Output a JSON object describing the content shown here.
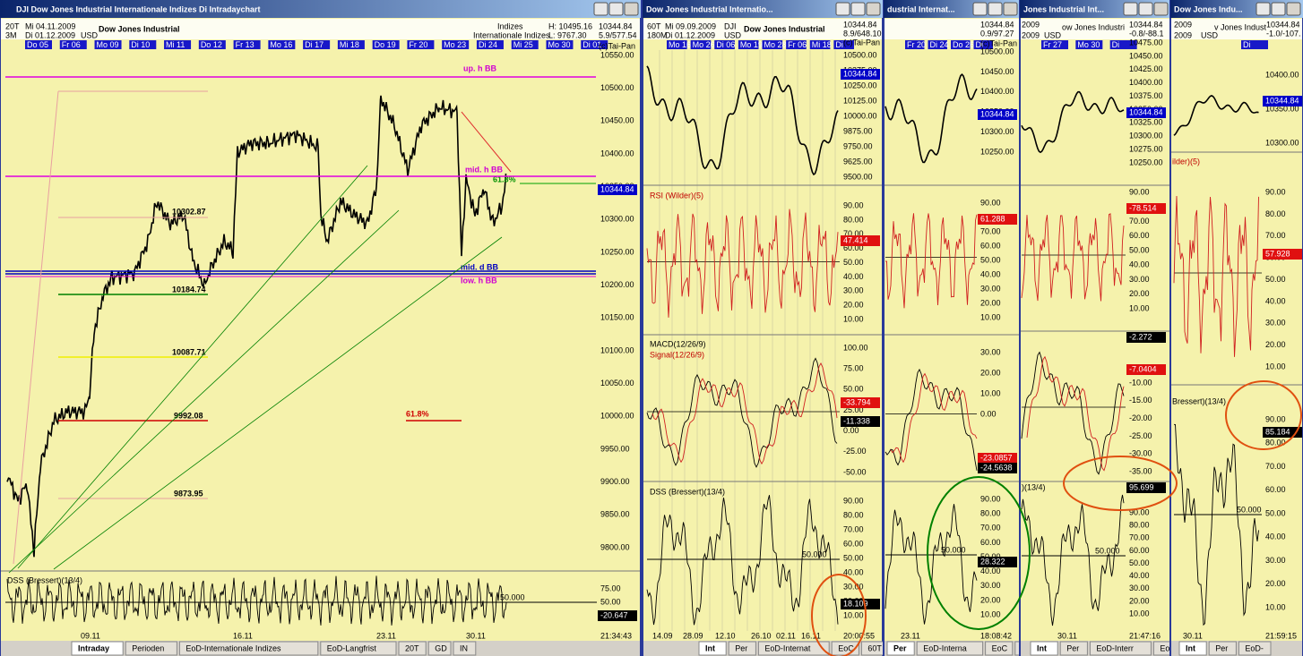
{
  "windows": [
    {
      "title": "DJI Dow Jones Industrial Internationale Indizes Di Intradaychart",
      "header": [
        "20T",
        "Mi 04.11.2009",
        "Dow Jones Industrial",
        "Indizes",
        "H: 10495.16",
        "10344.84",
        "3M",
        "Di 01.12.2009",
        "USD",
        "Internationale Indizes",
        "L: 9767.30",
        "5.9/577.54"
      ],
      "dates": [
        "Do 05",
        "Fr 06",
        "Mo 09",
        "Di 10",
        "Mi 11",
        "Do 12",
        "Fr 13",
        "Mo 16",
        "Di 17",
        "Mi 18",
        "Do 19",
        "Fr 20",
        "Mo 23",
        "Di 24",
        "Mi 25",
        "Mo 30",
        "Di 01"
      ],
      "annotations": [
        {
          "text": "up. h BB",
          "color": "#d000d0"
        },
        {
          "text": "mid. h BB",
          "color": "#d000d0"
        },
        {
          "text": "61.8%",
          "color": "#009000"
        },
        {
          "text": "mid. d BB",
          "color": "#0000c0"
        },
        {
          "text": "low. h BB",
          "color": "#d000d0"
        },
        {
          "text": "10302.87",
          "color": "#000000"
        },
        {
          "text": "10184.74",
          "color": "#000000"
        },
        {
          "text": "10087.71",
          "color": "#000000"
        },
        {
          "text": "9992.08",
          "color": "#000000"
        },
        {
          "text": "61.8%",
          "color": "#d00000"
        },
        {
          "text": "9873.95",
          "color": "#000000"
        }
      ],
      "panels": [
        {
          "labels": [
            {
              "text": "(c)Tai-Pan",
              "color": "#000000"
            }
          ],
          "axis": [
            "10550.00",
            "10500.00",
            "10450.00",
            "10400.00",
            "10350.00",
            "10300.00",
            "10250.00",
            "10200.00",
            "10150.00",
            "10100.00",
            "10050.00",
            "10000.00",
            "9950.00",
            "9900.00",
            "9850.00",
            "9800.00"
          ],
          "tags": [
            {
              "text": "10344.84",
              "color": "#0000c8"
            }
          ]
        },
        {
          "labels": [
            {
              "text": "DSS (Bressert)(13/4)",
              "color": "#000000"
            }
          ],
          "axis": [
            "75.00",
            "50.00",
            "25.00"
          ],
          "level": "50.000",
          "tags": [
            {
              "text": "-20.647",
              "color": "#000000"
            }
          ]
        }
      ],
      "xdates": [
        "09.11",
        "16.11",
        "23.11",
        "30.11"
      ],
      "time": "21:34:43",
      "tabs": [
        "Intraday",
        "Perioden",
        "EoD-Internationale Indizes",
        "EoD-Langfrist",
        "20T",
        "GD",
        "IN"
      ]
    },
    {
      "title": "Dow Jones Industrial Internatio...",
      "header": [
        "60T",
        "Mi 09.09.2009",
        "DJI",
        "180M",
        "Di 01.12.2009",
        "USD",
        "Dow Jones Industrial",
        "10344.84",
        "8.9/648.10"
      ],
      "dates": [
        "Mo 16",
        "Mo 26",
        "Di 06",
        "Mo 19",
        "Mo 28",
        "Fr 06",
        "Mi 18",
        "Di"
      ],
      "panels": [
        {
          "labels": [
            {
              "text": "(c)Tai-Pan",
              "color": "#000000"
            }
          ],
          "axis": [
            "10500.00",
            "10375.00",
            "10250.00",
            "10125.00",
            "10000.00",
            "9875.00",
            "9750.00",
            "9625.00",
            "9500.00"
          ],
          "tags": [
            {
              "text": "10344.84",
              "color": "#0000c8"
            }
          ]
        },
        {
          "labels": [
            {
              "text": "RSI (Wilder)(5)",
              "color": "#c00000"
            }
          ],
          "axis": [
            "90.00",
            "80.00",
            "70.00",
            "60.00",
            "50.00",
            "40.00",
            "30.00",
            "20.00",
            "10.00"
          ],
          "tags": [
            {
              "text": "47.414",
              "color": "#e01010"
            }
          ]
        },
        {
          "labels": [
            {
              "text": "MACD(12/26/9)",
              "color": "#000000"
            },
            {
              "text": "Signal(12/26/9)",
              "color": "#c00000"
            }
          ],
          "axis": [
            "100.00",
            "75.00",
            "50.00",
            "25.00",
            "0.00",
            "-25.00",
            "-50.00"
          ],
          "tags": [
            {
              "text": "-33.794",
              "color": "#e01010"
            },
            {
              "text": "-11.338",
              "color": "#000000"
            }
          ]
        },
        {
          "labels": [
            {
              "text": "DSS (Bressert)(13/4)",
              "color": "#000000"
            }
          ],
          "axis": [
            "90.00",
            "80.00",
            "70.00",
            "60.00",
            "50.00",
            "40.00",
            "30.00",
            "20.00",
            "10.00"
          ],
          "level": "50.000",
          "tags": [
            {
              "text": "18.109",
              "color": "#000000"
            }
          ]
        }
      ],
      "xdates": [
        "14.09",
        "28.09",
        "12.10",
        "26.10",
        "02.11",
        "16.11"
      ],
      "time": "20:00:55",
      "tabs": [
        "Int",
        "Per",
        "EoD-Internat",
        "EoC",
        "60T"
      ]
    },
    {
      "title": "dustrial Internat...",
      "header": [
        "10344.84",
        "0.9/97.27"
      ],
      "dates": [
        "Fr 20",
        "Di 24",
        "Do 26",
        "Di"
      ],
      "panels": [
        {
          "labels": [
            {
              "text": "(c)Tai-Pan",
              "color": "#000000"
            }
          ],
          "axis": [
            "10500.00",
            "10450.00",
            "10400.00",
            "10350.00",
            "10300.00",
            "10250.00"
          ],
          "tags": [
            {
              "text": "10344.84",
              "color": "#0000c8"
            }
          ]
        },
        {
          "labels": [],
          "axis": [
            "90.00",
            "80.00",
            "70.00",
            "60.00",
            "50.00",
            "40.00",
            "30.00",
            "20.00",
            "10.00"
          ],
          "tags": [
            {
              "text": "61.288",
              "color": "#e01010"
            }
          ]
        },
        {
          "labels": [],
          "axis": [
            "30.00",
            "20.00",
            "10.00",
            "0.00"
          ],
          "tags": [
            {
              "text": "-23.0857",
              "color": "#e01010"
            },
            {
              "text": "-24.5638",
              "color": "#000000"
            }
          ]
        },
        {
          "labels": [],
          "axis": [
            "90.00",
            "80.00",
            "70.00",
            "60.00",
            "50.00",
            "40.00",
            "30.00",
            "20.00",
            "10.00"
          ],
          "level": "50.000",
          "tags": [
            {
              "text": "28.322",
              "color": "#000000"
            }
          ]
        }
      ],
      "xdates": [
        "23.11"
      ],
      "time": "18:08:42",
      "tabs": [
        "Per",
        "EoD-Interna",
        "EoC",
        "15T"
      ]
    },
    {
      "title": "Jones Industrial Int...",
      "header": [
        "2009",
        "ow Jones Industri",
        "2009",
        "USD",
        "10344.84",
        "-0.8/-88.1"
      ],
      "dates": [
        "Fr 27",
        "Mo 30",
        "Di"
      ],
      "panels": [
        {
          "labels": [],
          "axis": [
            "10475.00",
            "10450.00",
            "10425.00",
            "10400.00",
            "10375.00",
            "10350.00",
            "10325.00",
            "10300.00",
            "10275.00",
            "10250.00"
          ],
          "tags": [
            {
              "text": "10344.84",
              "color": "#0000c8"
            }
          ]
        },
        {
          "labels": [],
          "axis": [
            "90.00",
            "80.00",
            "70.00",
            "60.00",
            "50.00",
            "40.00",
            "30.00",
            "20.00",
            "10.00"
          ],
          "tags": [
            {
              "text": "-78.514",
              "color": "#e01010"
            }
          ]
        },
        {
          "labels": [],
          "axis": [
            "-10.00",
            "-15.00",
            "-20.00",
            "-25.00",
            "-30.00",
            "-35.00"
          ],
          "tags": [
            {
              "text": "-2.272",
              "color": "#000000"
            },
            {
              "text": "-7.0404",
              "color": "#e01010"
            }
          ]
        },
        {
          "labels": [
            {
              "text": ")(13/4)",
              "color": "#000000"
            }
          ],
          "axis": [
            "90.00",
            "80.00",
            "70.00",
            "60.00",
            "50.00",
            "40.00",
            "30.00",
            "20.00",
            "10.00"
          ],
          "level": "50.000",
          "tags": [
            {
              "text": "95.699",
              "color": "#000000"
            }
          ]
        }
      ],
      "xdates": [
        "30.11"
      ],
      "time": "21:47:16",
      "tabs": [
        "Int",
        "Per",
        "EoD-Interr",
        "EoC"
      ]
    },
    {
      "title": "Dow Jones Indu...",
      "header": [
        "2009",
        "v Jones Indust",
        "2009",
        "USD",
        "10344.84",
        "-1.0/-107."
      ],
      "dates": [
        "Di"
      ],
      "panels": [
        {
          "labels": [],
          "axis": [
            "10400.00",
            "10350.00",
            "10300.00"
          ],
          "tags": [
            {
              "text": "10344.84",
              "color": "#0000c8"
            }
          ]
        },
        {
          "labels": [
            {
              "text": "ilder)(5)",
              "color": "#c00000"
            }
          ],
          "axis": [
            "90.00",
            "80.00",
            "70.00",
            "60.00",
            "50.00",
            "40.00",
            "30.00",
            "20.00",
            "10.00"
          ],
          "tags": [
            {
              "text": "57.928",
              "color": "#e01010"
            }
          ]
        },
        {
          "labels": [
            {
              "text": "Bressert)(13/4)",
              "color": "#000000"
            }
          ],
          "axis": [
            "90.00",
            "80.00",
            "70.00",
            "60.00",
            "50.00",
            "40.00",
            "30.00",
            "20.00",
            "10.00"
          ],
          "level": "50.000",
          "tags": [
            {
              "text": "85.184",
              "color": "#000000"
            }
          ]
        }
      ],
      "xdates": [
        "30.11"
      ],
      "time": "21:59:15",
      "tabs": [
        "Int",
        "Per",
        "EoD-"
      ]
    }
  ]
}
